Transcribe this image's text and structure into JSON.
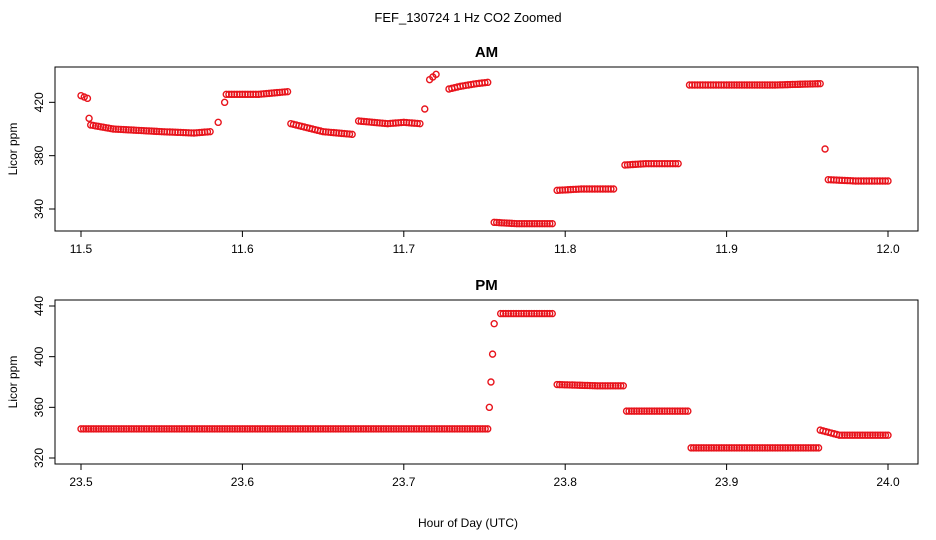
{
  "figure": {
    "title": "FEF_130724  1 Hz CO2 Zoomed",
    "xlabel": "Hour of Day (UTC)"
  },
  "colors": {
    "points": "#e8141c",
    "axes": "#000000"
  },
  "chart_data": [
    {
      "type": "scatter",
      "title": "AM",
      "xlabel": "",
      "ylabel": "Licor ppm",
      "xlim": [
        11.5,
        12.0
      ],
      "ylim": [
        328,
        442
      ],
      "xticks": [
        "11.5",
        "11.6",
        "11.7",
        "11.8",
        "11.9",
        "12.0"
      ],
      "xtick_values": [
        11.5,
        11.6,
        11.7,
        11.8,
        11.9,
        12.0
      ],
      "yticks": [
        "340",
        "380",
        "420"
      ],
      "ytick_values": [
        340,
        380,
        420
      ],
      "series": [
        {
          "values": [
            [
              11.5,
              425
            ],
            [
              11.504,
              423
            ],
            [
              11.505,
              408
            ],
            [
              11.506,
              403
            ],
            [
              11.52,
              400
            ],
            [
              11.55,
              398
            ],
            [
              11.57,
              397
            ],
            [
              11.58,
              398
            ],
            [
              11.585,
              405
            ],
            [
              11.589,
              420
            ],
            [
              11.59,
              426
            ],
            [
              11.61,
              426
            ],
            [
              11.628,
              428
            ],
            [
              11.63,
              404
            ],
            [
              11.65,
              398
            ],
            [
              11.668,
              396
            ],
            [
              11.672,
              406
            ],
            [
              11.69,
              404
            ],
            [
              11.7,
              405
            ],
            [
              11.71,
              404
            ],
            [
              11.713,
              415
            ],
            [
              11.716,
              437
            ],
            [
              11.72,
              441
            ],
            [
              11.728,
              430
            ],
            [
              11.735,
              432
            ],
            [
              11.745,
              434
            ],
            [
              11.752,
              435
            ],
            [
              11.756,
              330
            ],
            [
              11.77,
              329
            ],
            [
              11.792,
              329
            ],
            [
              11.795,
              354
            ],
            [
              11.81,
              355
            ],
            [
              11.83,
              355
            ],
            [
              11.837,
              373
            ],
            [
              11.85,
              374
            ],
            [
              11.87,
              374
            ],
            [
              11.877,
              433
            ],
            [
              11.9,
              433
            ],
            [
              11.93,
              433
            ],
            [
              11.958,
              434
            ],
            [
              11.961,
              385
            ],
            [
              11.963,
              362
            ],
            [
              11.98,
              361
            ],
            [
              12.0,
              361
            ]
          ]
        }
      ]
    },
    {
      "type": "scatter",
      "title": "PM",
      "xlabel": "Hour of Day (UTC)",
      "ylabel": "Licor ppm",
      "xlim": [
        23.5,
        24.0
      ],
      "ylim": [
        320,
        440
      ],
      "xticks": [
        "23.5",
        "23.6",
        "23.7",
        "23.8",
        "23.9",
        "24.0"
      ],
      "xtick_values": [
        23.5,
        23.6,
        23.7,
        23.8,
        23.9,
        24.0
      ],
      "yticks": [
        "320",
        "360",
        "400",
        "440"
      ],
      "ytick_values": [
        320,
        360,
        400,
        440
      ],
      "series": [
        {
          "values": [
            [
              23.5,
              343
            ],
            [
              23.6,
              343
            ],
            [
              23.7,
              343
            ],
            [
              23.752,
              343
            ],
            [
              23.753,
              360
            ],
            [
              23.754,
              380
            ],
            [
              23.755,
              402
            ],
            [
              23.756,
              426
            ],
            [
              23.76,
              434
            ],
            [
              23.792,
              434
            ],
            [
              23.795,
              378
            ],
            [
              23.82,
              377
            ],
            [
              23.836,
              377
            ],
            [
              23.838,
              357
            ],
            [
              23.86,
              357
            ],
            [
              23.876,
              357
            ],
            [
              23.878,
              328
            ],
            [
              23.9,
              328
            ],
            [
              23.957,
              328
            ],
            [
              23.958,
              342
            ],
            [
              23.97,
              338
            ],
            [
              24.0,
              338
            ]
          ]
        }
      ]
    }
  ]
}
